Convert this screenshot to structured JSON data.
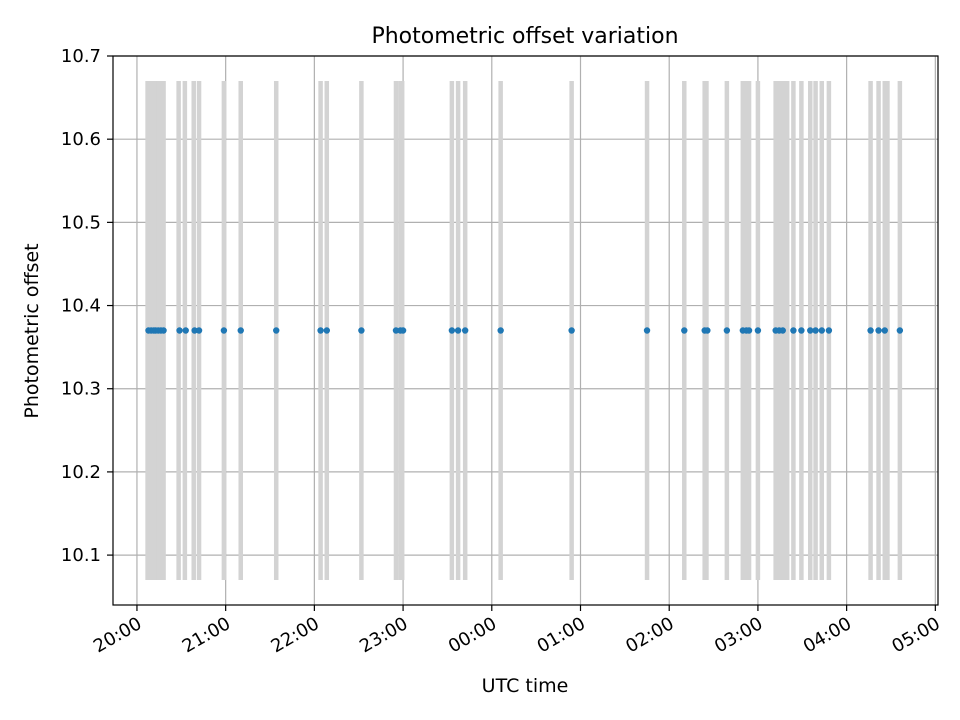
{
  "chart_data": {
    "type": "scatter",
    "title": "Photometric offset variation",
    "xlabel": "UTC time",
    "ylabel": "Photometric offset",
    "grid": true,
    "x_unit": "UTC time (hours past 20:00)",
    "xlim": [
      -0.27,
      9.03
    ],
    "ylim": [
      10.04,
      10.7
    ],
    "x_ticks": [
      {
        "value": 0,
        "label": "20:00"
      },
      {
        "value": 1,
        "label": "21:00"
      },
      {
        "value": 2,
        "label": "22:00"
      },
      {
        "value": 3,
        "label": "23:00"
      },
      {
        "value": 4,
        "label": "00:00"
      },
      {
        "value": 5,
        "label": "01:00"
      },
      {
        "value": 6,
        "label": "02:00"
      },
      {
        "value": 7,
        "label": "03:00"
      },
      {
        "value": 8,
        "label": "04:00"
      },
      {
        "value": 9,
        "label": "05:00"
      }
    ],
    "y_ticks": [
      {
        "value": 10.1,
        "label": "10.1"
      },
      {
        "value": 10.2,
        "label": "10.2"
      },
      {
        "value": 10.3,
        "label": "10.3"
      },
      {
        "value": 10.4,
        "label": "10.4"
      },
      {
        "value": 10.5,
        "label": "10.5"
      },
      {
        "value": 10.6,
        "label": "10.6"
      },
      {
        "value": 10.7,
        "label": "10.7"
      }
    ],
    "vertical_bands": {
      "color": "#d3d3d3",
      "y_range": [
        10.07,
        10.67
      ],
      "x": [
        0.12,
        0.15,
        0.17,
        0.2,
        0.22,
        0.25,
        0.27,
        0.29,
        0.3,
        0.47,
        0.54,
        0.64,
        0.7,
        0.98,
        1.17,
        1.57,
        2.07,
        2.14,
        2.53,
        2.92,
        2.97,
        2.99,
        3.55,
        3.62,
        3.7,
        4.1,
        4.9,
        5.75,
        6.17,
        6.4,
        6.42,
        6.65,
        6.83,
        6.86,
        6.9,
        7.0,
        7.2,
        7.24,
        7.28,
        7.33,
        7.4,
        7.49,
        7.59,
        7.65,
        7.72,
        7.8,
        8.27,
        8.36,
        8.43,
        8.46,
        8.6
      ]
    },
    "series": [
      {
        "color": "#1f77b4",
        "x": [
          0.13,
          0.16,
          0.19,
          0.21,
          0.24,
          0.27,
          0.3,
          0.48,
          0.55,
          0.65,
          0.7,
          0.98,
          1.17,
          1.57,
          2.07,
          2.14,
          2.53,
          2.92,
          2.97,
          3.0,
          3.55,
          3.62,
          3.7,
          4.1,
          4.9,
          5.75,
          6.17,
          6.4,
          6.43,
          6.65,
          6.83,
          6.87,
          6.9,
          7.0,
          7.2,
          7.24,
          7.28,
          7.4,
          7.49,
          7.59,
          7.65,
          7.72,
          7.8,
          8.27,
          8.36,
          8.43,
          8.6
        ],
        "y": [
          10.37,
          10.37,
          10.37,
          10.37,
          10.37,
          10.37,
          10.37,
          10.37,
          10.37,
          10.37,
          10.37,
          10.37,
          10.37,
          10.37,
          10.37,
          10.37,
          10.37,
          10.37,
          10.37,
          10.37,
          10.37,
          10.37,
          10.37,
          10.37,
          10.37,
          10.37,
          10.37,
          10.37,
          10.37,
          10.37,
          10.37,
          10.37,
          10.37,
          10.37,
          10.37,
          10.37,
          10.37,
          10.37,
          10.37,
          10.37,
          10.37,
          10.37,
          10.37,
          10.37,
          10.37,
          10.37,
          10.37
        ]
      }
    ]
  }
}
